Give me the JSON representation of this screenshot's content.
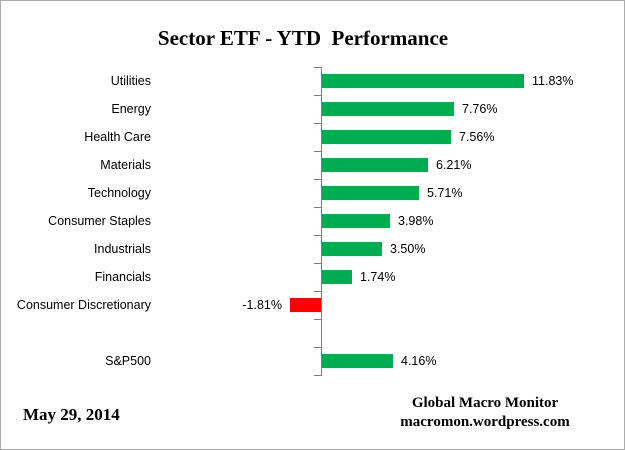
{
  "window": {
    "background": "#FFFFFF",
    "border_color": "#ABABAB"
  },
  "chart_data": {
    "type": "bar",
    "orientation": "horizontal",
    "title": "Sector ETF - YTD  Performance",
    "categories": [
      "Utilities",
      "Energy",
      "Health Care",
      "Materials",
      "Technology",
      "Consumer Staples",
      "Industrials",
      "Financials",
      "Consumer Discretionary",
      "",
      "S&P500"
    ],
    "values": [
      11.83,
      7.76,
      7.56,
      6.21,
      5.71,
      3.98,
      3.5,
      1.74,
      -1.81,
      null,
      4.16
    ],
    "value_labels": [
      "11.83%",
      "7.76%",
      "7.56%",
      "6.21%",
      "5.71%",
      "3.98%",
      "3.50%",
      "1.74%",
      "-1.81%",
      "",
      "4.16%"
    ],
    "positive_color": "#00AC50",
    "negative_color": "#FF0000",
    "axis_color": "#808080",
    "xlim": [
      -10,
      18
    ],
    "gridlines": false,
    "legend": false
  },
  "footer": {
    "date_label": "May 29, 2014",
    "attribution_line1": "Global Macro Monitor",
    "attribution_line2": "macromon.wordpress.com"
  }
}
